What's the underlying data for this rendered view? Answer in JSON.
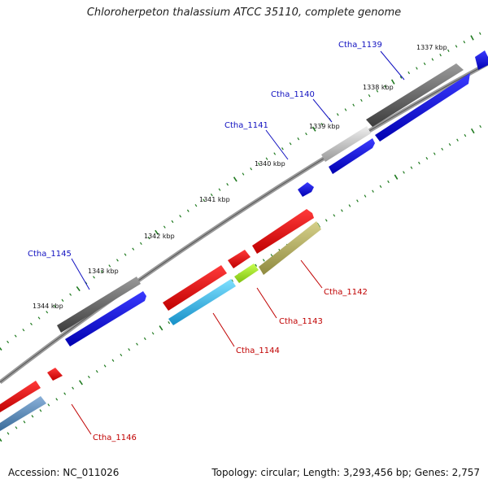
{
  "title": "Chloroherpeton thalassium ATCC 35110, complete genome",
  "footer": {
    "accession": "Accession: NC_011026",
    "summary": "Topology: circular; Length: 3,293,456 bp; Genes: 2,757"
  },
  "colors": {
    "backbone": "#8a8a8a",
    "tick": "#1f7a1f",
    "label_top": "#1010c0",
    "label_bottom": "#c00000"
  },
  "kbp_labels": [
    "1337 kbp",
    "1338 kbp",
    "1339 kbp",
    "1340 kbp",
    "1341 kbp",
    "1342 kbp",
    "1343 kbp",
    "1344 kbp"
  ],
  "gene_labels": [
    {
      "name": "Ctha_1139",
      "side": "top"
    },
    {
      "name": "Ctha_1140",
      "side": "top"
    },
    {
      "name": "Ctha_1141",
      "side": "top"
    },
    {
      "name": "Ctha_1145",
      "side": "top"
    },
    {
      "name": "Ctha_1142",
      "side": "bottom"
    },
    {
      "name": "Ctha_1143",
      "side": "bottom"
    },
    {
      "name": "Ctha_1144",
      "side": "bottom"
    },
    {
      "name": "Ctha_1146",
      "side": "bottom"
    }
  ]
}
